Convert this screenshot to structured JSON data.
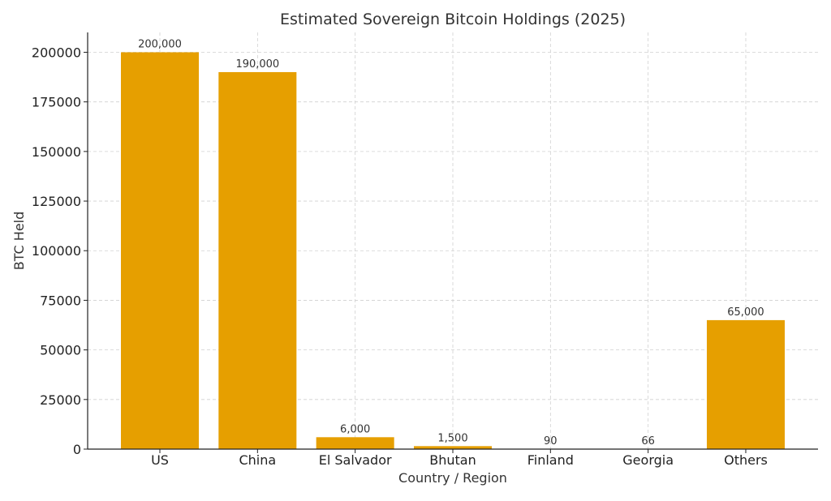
{
  "chart_data": {
    "type": "bar",
    "title": "Estimated Sovereign Bitcoin Holdings (2025)",
    "xlabel": "Country / Region",
    "ylabel": "BTC Held",
    "categories": [
      "US",
      "China",
      "El Salvador",
      "Bhutan",
      "Finland",
      "Georgia",
      "Others"
    ],
    "values": [
      200000,
      190000,
      6000,
      1500,
      90,
      66,
      65000
    ],
    "data_labels": [
      "200,000",
      "190,000",
      "6,000",
      "1,500",
      "90",
      "66",
      "65,000"
    ],
    "ylim": [
      0,
      210000
    ],
    "yticks": [
      0,
      25000,
      50000,
      75000,
      100000,
      125000,
      150000,
      175000,
      200000
    ],
    "ytick_labels": [
      "0",
      "25000",
      "50000",
      "75000",
      "100000",
      "125000",
      "150000",
      "175000",
      "200000"
    ],
    "grid": true,
    "bar_color": "#E69F00"
  }
}
